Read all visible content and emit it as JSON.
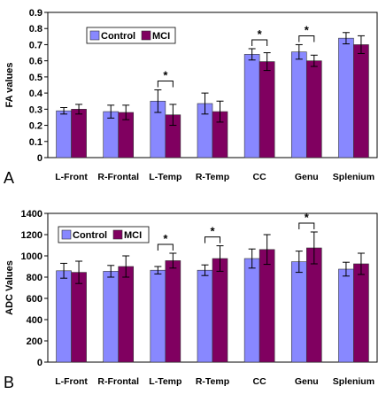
{
  "chart_data": [
    {
      "type": "bar",
      "panel_label": "A",
      "ylabel": "FA values",
      "xlabel": "",
      "ylim": [
        0,
        0.9
      ],
      "yticks": [
        "0",
        "0.1",
        "0.2",
        "0.3",
        "0.4",
        "0.5",
        "0.6",
        "0.7",
        "0.8",
        "0.9"
      ],
      "categories": [
        "L-Front",
        "R-Frontal",
        "L-Temp",
        "R-Temp",
        "CC",
        "Genu",
        "Splenium"
      ],
      "series": [
        {
          "name": "Control",
          "color": "#8888ff",
          "values": [
            0.29,
            0.285,
            0.35,
            0.335,
            0.64,
            0.655,
            0.74
          ],
          "errors": [
            0.02,
            0.04,
            0.07,
            0.065,
            0.035,
            0.045,
            0.035
          ]
        },
        {
          "name": "MCI",
          "color": "#800060",
          "values": [
            0.3,
            0.28,
            0.265,
            0.285,
            0.595,
            0.6,
            0.7
          ],
          "errors": [
            0.03,
            0.045,
            0.065,
            0.065,
            0.055,
            0.035,
            0.055
          ]
        }
      ],
      "significance": [
        "",
        "",
        "*",
        "",
        "*",
        "*",
        ""
      ],
      "legend_position": "top-left",
      "grid": false
    },
    {
      "type": "bar",
      "panel_label": "B",
      "ylabel": "ADC Values",
      "xlabel": "",
      "ylim": [
        0,
        1400
      ],
      "yticks": [
        "0",
        "200",
        "400",
        "600",
        "800",
        "1000",
        "1200",
        "1400"
      ],
      "categories": [
        "L-Front",
        "R-Frontal",
        "L-Temp",
        "R-Temp",
        "CC",
        "Genu",
        "Splenium"
      ],
      "series": [
        {
          "name": "Control",
          "color": "#8888ff",
          "values": [
            860,
            855,
            865,
            865,
            975,
            945,
            875
          ],
          "errors": [
            70,
            55,
            35,
            50,
            90,
            100,
            65
          ]
        },
        {
          "name": "MCI",
          "color": "#800060",
          "values": [
            845,
            900,
            955,
            975,
            1060,
            1075,
            925
          ],
          "errors": [
            105,
            100,
            70,
            120,
            140,
            150,
            100
          ]
        }
      ],
      "significance": [
        "",
        "",
        "*",
        "*",
        "",
        "*",
        ""
      ],
      "legend_position": "top-left",
      "grid": false
    }
  ]
}
